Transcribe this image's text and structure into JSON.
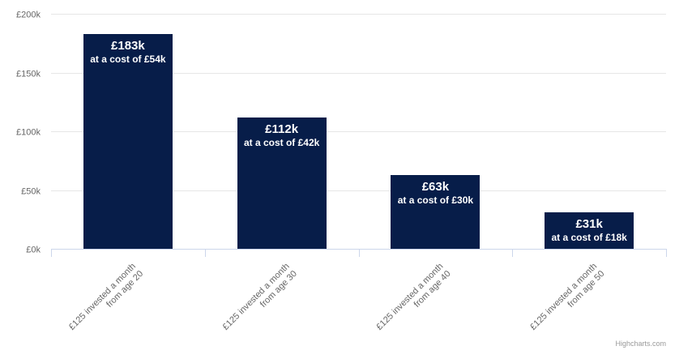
{
  "chart_data": {
    "type": "bar",
    "title": "",
    "xlabel": "",
    "ylabel": "",
    "ylim": [
      0,
      200000
    ],
    "y_ticks": [
      {
        "value": 0,
        "label": "£0k"
      },
      {
        "value": 50000,
        "label": "£50k"
      },
      {
        "value": 100000,
        "label": "£100k"
      },
      {
        "value": 150000,
        "label": "£150k"
      },
      {
        "value": 200000,
        "label": "£200k"
      }
    ],
    "grid": true,
    "legend": "none",
    "categories": [
      [
        "£125 invested a month",
        "from age 20"
      ],
      [
        "£125 invested a month",
        "from age 30"
      ],
      [
        "£125 invested a month",
        "from age 40"
      ],
      [
        "£125 invested a month",
        "from age 50"
      ]
    ],
    "values": [
      183000,
      112000,
      63000,
      31000
    ],
    "data_labels": [
      {
        "value": "£183k",
        "cost": "at a cost of £54k"
      },
      {
        "value": "£112k",
        "cost": "at a cost of £42k"
      },
      {
        "value": "£63k",
        "cost": "at a cost of £30k"
      },
      {
        "value": "£31k",
        "cost": "at a cost of £18k"
      }
    ],
    "colors": {
      "bar": "#071d49",
      "grid": "#e6e6e6",
      "axis": "#ccd6eb",
      "tick_text": "#666666",
      "label_text": "#ffffff"
    }
  },
  "credits": "Highcharts.com"
}
